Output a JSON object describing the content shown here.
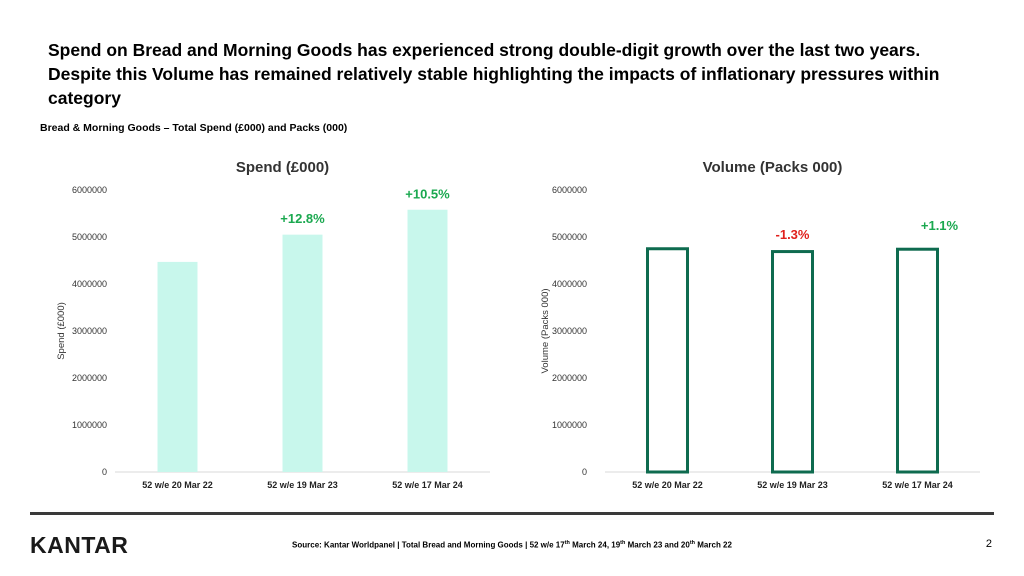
{
  "headline": "Spend on Bread and Morning Goods has experienced strong double-digit growth over the last two years. Despite this Volume has remained relatively stable highlighting the impacts of inflationary pressures within category",
  "subtitle": "Bread & Morning Goods – Total Spend (£000) and Packs (000)",
  "colors": {
    "spend_fill": "#c8f7ec",
    "volume_stroke": "#0e6b4f",
    "positive": "#1aa84f",
    "negative": "#e0201c",
    "axis": "#d9d9d9"
  },
  "chart_data": [
    {
      "type": "bar",
      "title": "Spend (£000)",
      "ylabel": "Spend (£000)",
      "xlabel": "",
      "ylim": [
        0,
        6000000
      ],
      "yticks": [
        0,
        1000000,
        2000000,
        3000000,
        4000000,
        5000000,
        6000000
      ],
      "ytick_labels": [
        "0",
        "1000000",
        "2000000",
        "3000000",
        "4000000",
        "5000000",
        "6000000"
      ],
      "categories": [
        "52 w/e 20 Mar 22",
        "52 w/e 19 Mar 23",
        "52 w/e 17 Mar 24"
      ],
      "values": [
        4470000,
        5050000,
        5580000
      ],
      "annotations": [
        {
          "category_index": 1,
          "text": "+12.8%",
          "value_y": 5300000,
          "sign": "positive"
        },
        {
          "category_index": 2,
          "text": "+10.5%",
          "value_y": 5820000,
          "sign": "positive"
        }
      ],
      "style": "filled"
    },
    {
      "type": "bar",
      "title": "Volume (Packs 000)",
      "ylabel": "Volume (Packs 000)",
      "xlabel": "",
      "ylim": [
        0,
        6000000
      ],
      "yticks": [
        0,
        1000000,
        2000000,
        3000000,
        4000000,
        5000000,
        6000000
      ],
      "ytick_labels": [
        "0",
        "1000000",
        "2000000",
        "3000000",
        "4000000",
        "5000000",
        "6000000"
      ],
      "categories": [
        "52 w/e 20 Mar 22",
        "52 w/e 19 Mar 23",
        "52 w/e 17 Mar 24"
      ],
      "values": [
        4750000,
        4690000,
        4740000
      ],
      "annotations": [
        {
          "category_index": 1,
          "text": "-1.3%",
          "value_y": 4960000,
          "sign": "negative"
        },
        {
          "category_index": 2,
          "text": "+1.1%",
          "value_y": 5150000,
          "sign": "positive"
        }
      ],
      "style": "outline"
    }
  ],
  "footer": {
    "logo": "KANTAR",
    "source_prefix": "Source: Kantar Worldpanel | Total Bread and Morning Goods | 52 w/e 17",
    "source_sup1": "th",
    "source_mid1": " March 24, 19",
    "source_sup2": "th",
    "source_mid2": " March 23 and 20",
    "source_sup3": "th",
    "source_end": " March 22",
    "page_number": "2"
  }
}
